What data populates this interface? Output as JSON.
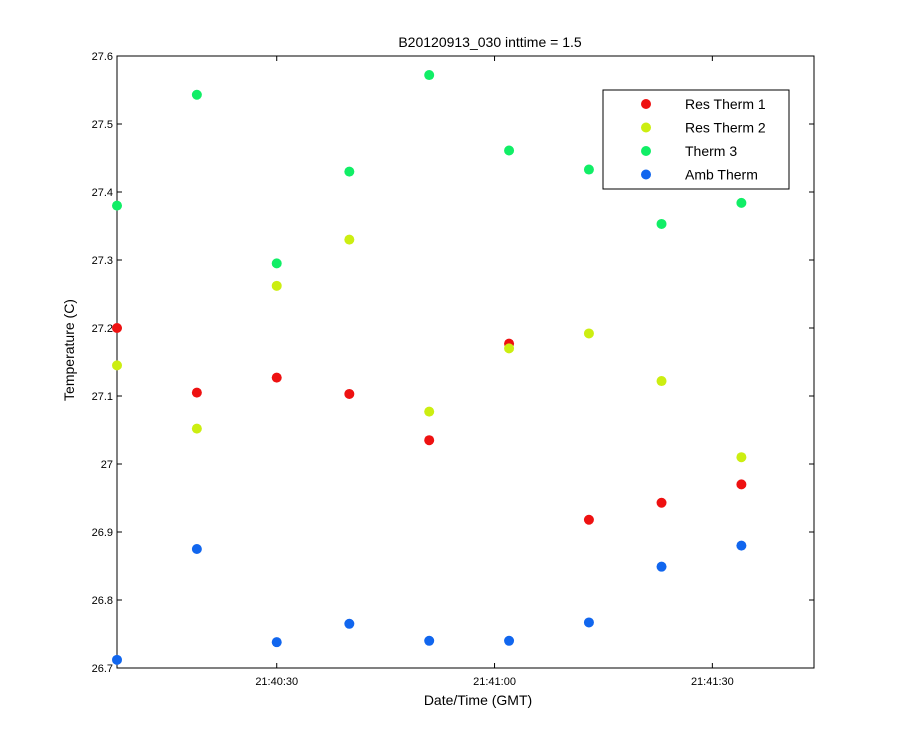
{
  "chart_data": {
    "type": "scatter",
    "title": "B20120913_030 inttime = 1.5",
    "xlabel": "Date/Time (GMT)",
    "ylabel": "Temperature (C)",
    "xlim": [
      "21:40:08",
      "21:41:44"
    ],
    "ylim": [
      26.7,
      27.6
    ],
    "x_ticks": [
      "21:40:30",
      "21:41:00",
      "21:41:30"
    ],
    "y_ticks": [
      "26.7",
      "26.8",
      "26.9",
      "27",
      "27.1",
      "27.2",
      "27.3",
      "27.4",
      "27.5",
      "27.6"
    ],
    "grid": false,
    "legend_position": "top-right",
    "x": [
      "21:40:08",
      "21:40:19",
      "21:40:30",
      "21:40:40",
      "21:40:51",
      "21:41:02",
      "21:41:13",
      "21:41:23",
      "21:41:34"
    ],
    "series": [
      {
        "name": "Res Therm 1",
        "color": "#ee1111",
        "values": [
          27.2,
          27.105,
          27.127,
          27.103,
          27.035,
          27.177,
          26.918,
          26.943,
          26.97
        ]
      },
      {
        "name": "Res Therm 2",
        "color": "#ccee11",
        "values": [
          27.145,
          27.052,
          27.262,
          27.33,
          27.077,
          27.17,
          27.192,
          27.122,
          27.01
        ]
      },
      {
        "name": "Therm 3",
        "color": "#11ee66",
        "values": [
          27.38,
          27.543,
          27.295,
          27.43,
          27.572,
          27.461,
          27.433,
          27.353,
          27.384
        ]
      },
      {
        "name": "Amb Therm",
        "color": "#1166ee",
        "values": [
          26.712,
          26.875,
          26.738,
          26.765,
          26.74,
          26.74,
          26.767,
          26.849,
          26.88
        ]
      }
    ]
  }
}
